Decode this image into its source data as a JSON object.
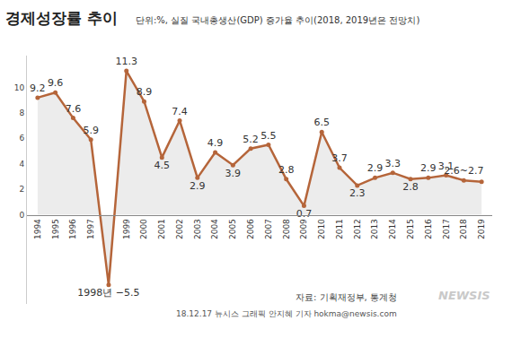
{
  "chart_data": {
    "type": "line",
    "title": "경제성장률 추이",
    "subtitle": "단위:%, 실질 국내총생산(GDP) 증가율 추이(2018, 2019년은 전망치)",
    "source": "자료: 기획재정부, 통계청",
    "credit": "18.12.17 뉴시스 그래픽 안지혜 기자 hokma@newsis.com",
    "logo": "NEWSIS",
    "categories": [
      "1994",
      "1995",
      "1996",
      "1997",
      null,
      "1999",
      "2000",
      "2001",
      "2002",
      "2003",
      "2004",
      "2005",
      "2006",
      "2007",
      "2008",
      "2009",
      "2010",
      "2011",
      "2012",
      "2013",
      "2014",
      "2015",
      "2016",
      "2017",
      "2018",
      "2019"
    ],
    "values": [
      9.2,
      9.6,
      7.6,
      5.9,
      -5.5,
      11.3,
      8.9,
      4.5,
      7.4,
      2.9,
      4.9,
      3.9,
      5.2,
      5.5,
      2.8,
      0.7,
      6.5,
      3.7,
      2.3,
      2.9,
      3.3,
      2.8,
      2.9,
      3.1,
      2.7,
      2.6
    ],
    "value_labels": [
      "9.2",
      "9.6",
      "7.6",
      "5.9",
      "1998년 −5.5",
      "11.3",
      "8.9",
      "4.5",
      "7.4",
      "2.9",
      "4.9",
      "3.9",
      "5.2",
      "5.5",
      "2.8",
      "0.7",
      "6.5",
      "3.7",
      "2.3",
      "2.9",
      "3.3",
      "2.8",
      "2.9",
      "3.1",
      "2.6~2.7",
      null
    ],
    "color": "#b5653a",
    "ylim": [
      -7,
      12.5
    ],
    "yticks": [
      0,
      2,
      4,
      6,
      8,
      10
    ],
    "grid": false,
    "data_labels": true,
    "marker": "circle"
  }
}
